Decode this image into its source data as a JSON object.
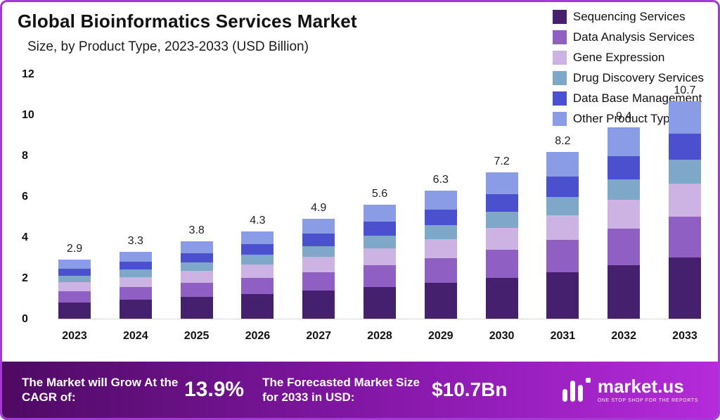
{
  "header": {
    "title": "Global Bioinformatics Services Market",
    "subtitle": "Size, by Product Type, 2023-2033 (USD Billion)"
  },
  "legend": [
    {
      "label": "Sequencing Services",
      "color": "#45206e"
    },
    {
      "label": "Data Analysis Services",
      "color": "#8f5fc4"
    },
    {
      "label": "Gene Expression",
      "color": "#cdb2e4"
    },
    {
      "label": "Drug Discovery Services",
      "color": "#7fa7c7"
    },
    {
      "label": "Data Base Management",
      "color": "#4b50cf"
    },
    {
      "label": "Other Product Types",
      "color": "#8a9ce6"
    }
  ],
  "chart_data": {
    "type": "bar",
    "stacked": true,
    "title": "Global Bioinformatics Services Market Size, by Product Type, 2023-2033 (USD Billion)",
    "xlabel": "",
    "ylabel": "",
    "ylim": [
      0,
      12
    ],
    "yticks": [
      0,
      2,
      4,
      6,
      8,
      10,
      12
    ],
    "grid": false,
    "legend_position": "top-right",
    "categories": [
      "2023",
      "2024",
      "2025",
      "2026",
      "2027",
      "2028",
      "2029",
      "2030",
      "2031",
      "2032",
      "2033"
    ],
    "totals": [
      2.9,
      3.3,
      3.8,
      4.3,
      4.9,
      5.6,
      6.3,
      7.2,
      8.2,
      9.4,
      10.7
    ],
    "series": [
      {
        "name": "Sequencing Services",
        "color": "#45206e",
        "values": [
          0.81,
          0.92,
          1.06,
          1.2,
          1.37,
          1.57,
          1.76,
          2.02,
          2.3,
          2.63,
          3.0
        ]
      },
      {
        "name": "Data Analysis Services",
        "color": "#8f5fc4",
        "values": [
          0.55,
          0.63,
          0.72,
          0.82,
          0.93,
          1.06,
          1.2,
          1.37,
          1.56,
          1.79,
          2.03
        ]
      },
      {
        "name": "Gene Expression",
        "color": "#cdb2e4",
        "values": [
          0.44,
          0.5,
          0.57,
          0.65,
          0.74,
          0.84,
          0.95,
          1.08,
          1.23,
          1.41,
          1.61
        ]
      },
      {
        "name": "Drug Discovery Services",
        "color": "#7fa7c7",
        "values": [
          0.32,
          0.36,
          0.42,
          0.47,
          0.54,
          0.62,
          0.69,
          0.79,
          0.9,
          1.03,
          1.18
        ]
      },
      {
        "name": "Data Base Management",
        "color": "#4b50cf",
        "values": [
          0.35,
          0.4,
          0.46,
          0.52,
          0.59,
          0.67,
          0.76,
          0.86,
          0.98,
          1.13,
          1.28
        ]
      },
      {
        "name": "Other Product Types",
        "color": "#8a9ce6",
        "values": [
          0.43,
          0.49,
          0.57,
          0.64,
          0.73,
          0.84,
          0.94,
          1.08,
          1.23,
          1.41,
          1.6
        ]
      }
    ]
  },
  "footer": {
    "cagr_label": "The Market will Grow At the CAGR of:",
    "cagr_value": "13.9%",
    "forecast_label": "The Forecasted Market Size for 2033 in USD:",
    "forecast_value": "$10.7Bn",
    "brand": {
      "name": "market.us",
      "tagline": "ONE STOP SHOP FOR THE REPORTS"
    }
  }
}
